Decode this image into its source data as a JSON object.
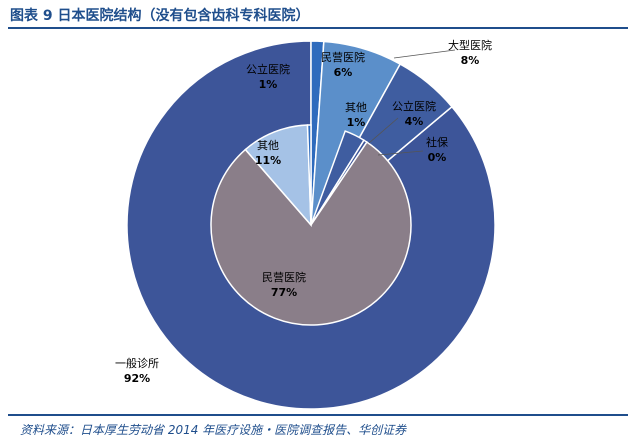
{
  "title": "图表 9 日本医院结构（没有包含齿科专科医院）",
  "source": "资料来源：日本厚生劳动省 2014 年医疗设施・医院调查报告、华创证券",
  "chart_data": {
    "type": "pie",
    "title": "图表 9 日本医院结构（没有包含齿科专科医院）",
    "rings": [
      {
        "name": "",
        "slices": [
          {
            "label": "公立医院",
            "value": 1,
            "value_label": "1%",
            "color": "#2e6bbd"
          },
          {
            "label": "民营医院",
            "value": 6,
            "value_label": "6%",
            "color": "#5b8fca"
          },
          {
            "label": "大型医院",
            "value": 8,
            "value_label": "8%",
            "color": "#3f5da0"
          },
          {
            "label": "一般诊所",
            "value": 92,
            "value_label": "92%",
            "color": "#3d5599"
          }
        ]
      },
      {
        "name": "",
        "slices": [
          {
            "label": "公立医院",
            "value": 4,
            "value_label": "4%",
            "color": "#3f5da0"
          },
          {
            "label": "社保",
            "value": 0,
            "value_label": "0%",
            "color": "#3d5599"
          },
          {
            "label": "民营医院",
            "value": 77,
            "value_label": "77%",
            "color": "#8a7e89"
          },
          {
            "label": "其他",
            "value": 11,
            "value_label": "11%",
            "color": "#a5c2e6"
          },
          {
            "label": "其他",
            "value": 1,
            "value_label": "1%",
            "color": "#2e6bbd"
          }
        ]
      }
    ],
    "legend": "none"
  }
}
